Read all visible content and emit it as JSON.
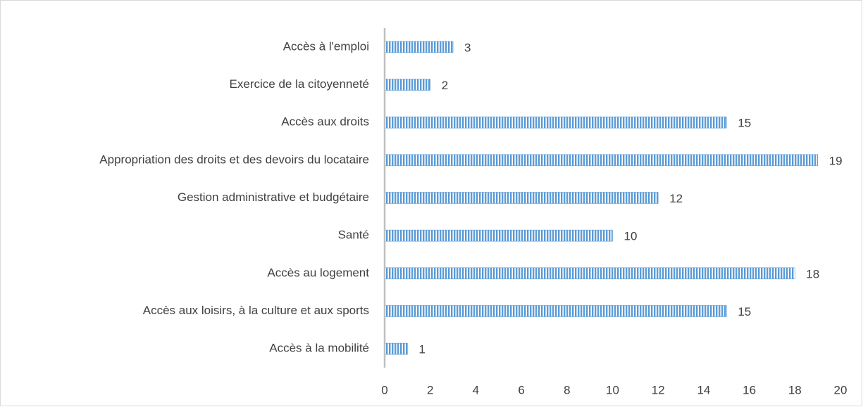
{
  "chart_data": {
    "type": "barh",
    "categories": [
      "Accès à l'emploi",
      "Exercice de la citoyenneté",
      "Accès aux droits",
      "Appropriation des droits et des devoirs du locataire",
      "Gestion administrative et budgétaire",
      "Santé",
      "Accès au logement",
      "Accès aux loisirs, à la culture et aux sports",
      "Accès à la mobilité"
    ],
    "values": [
      3,
      2,
      15,
      19,
      12,
      10,
      18,
      15,
      1
    ],
    "color": "#5b9bd5",
    "xlim": [
      0,
      20
    ],
    "xticks": [
      0,
      2,
      4,
      6,
      8,
      10,
      12,
      14,
      16,
      18,
      20
    ],
    "grid": false
  }
}
